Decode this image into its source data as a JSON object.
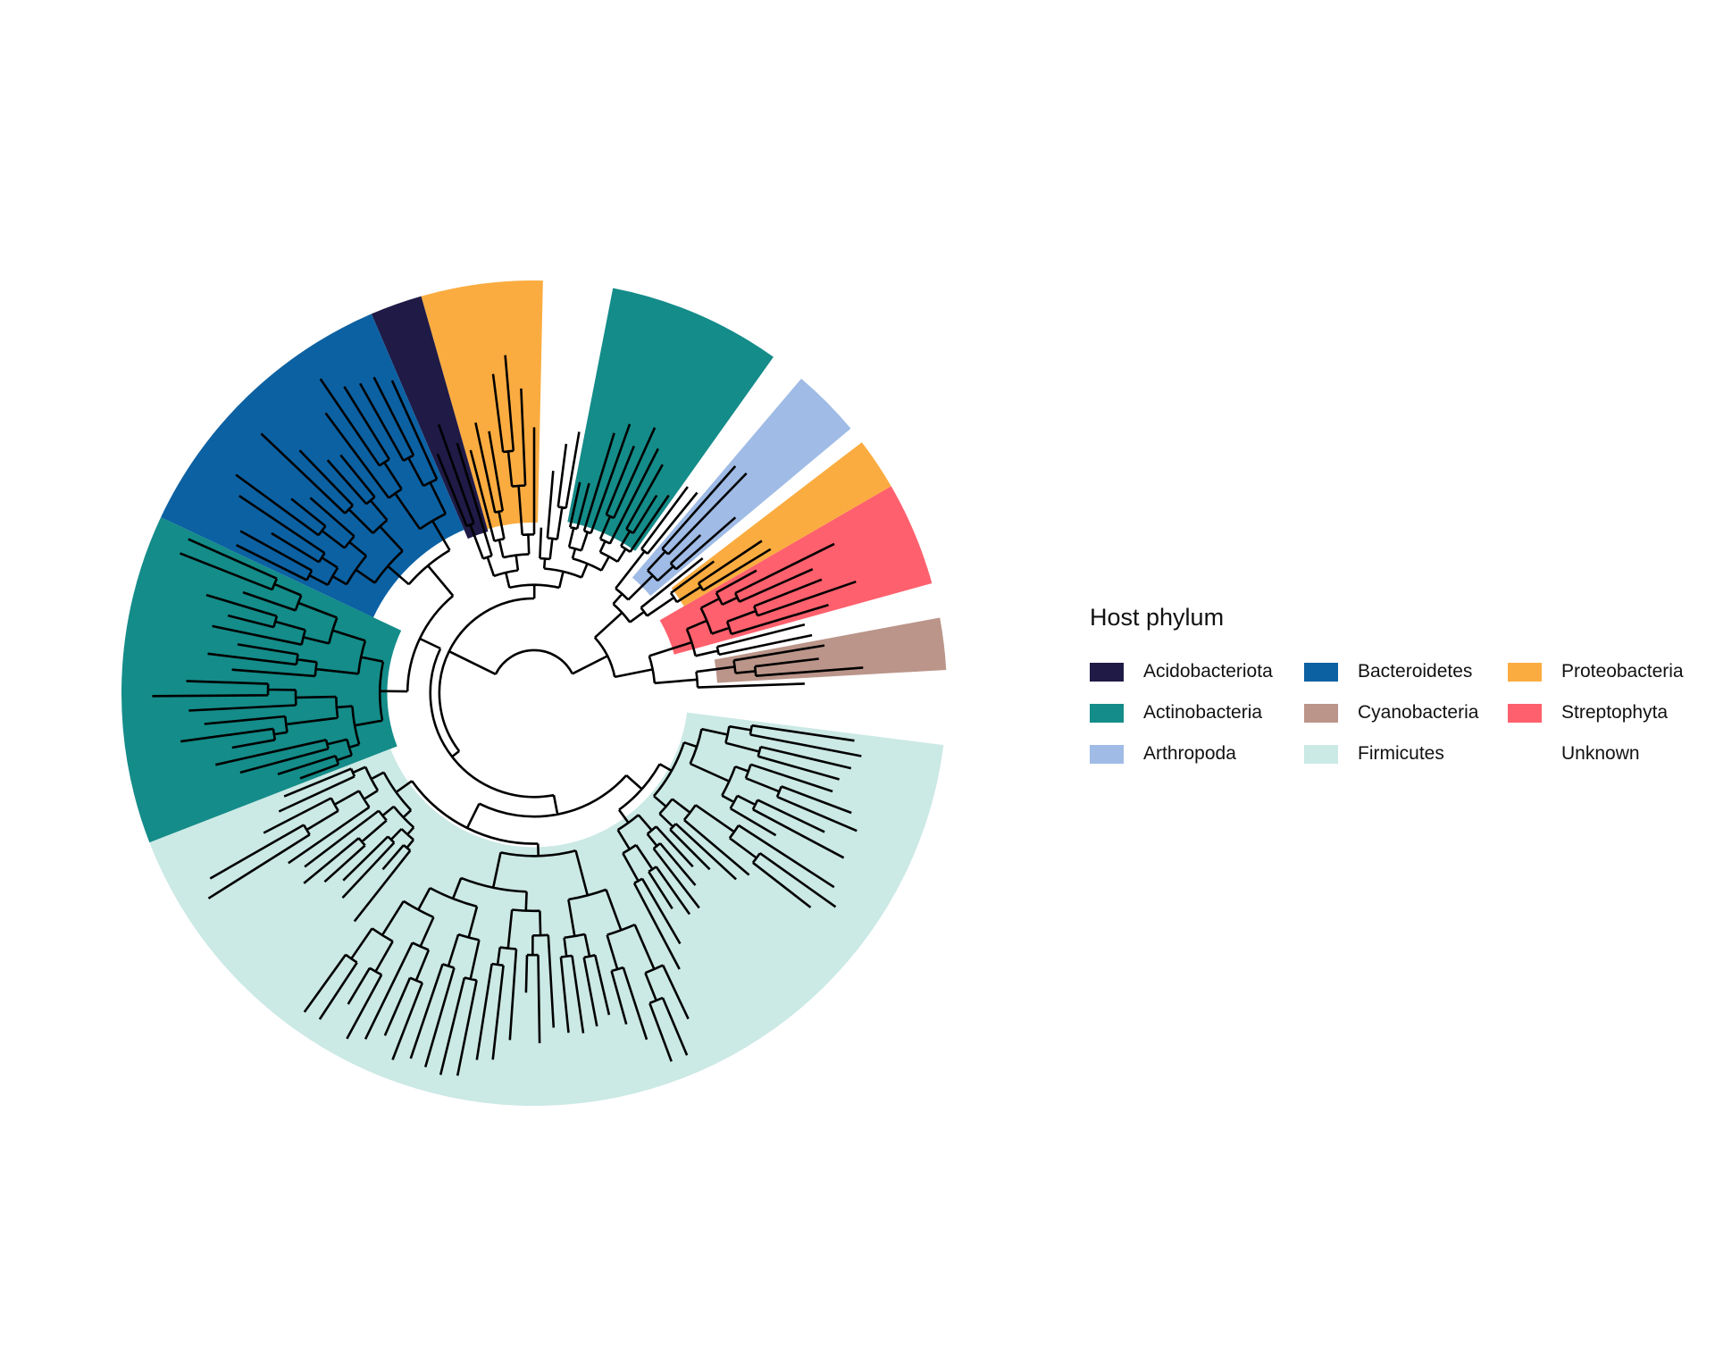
{
  "legend": {
    "title": "Host phylum",
    "items": [
      {
        "label": "Acidobacteriota",
        "color": "#1f1a46"
      },
      {
        "label": "Bacteroidetes",
        "color": "#0c61a2"
      },
      {
        "label": "Proteobacteria",
        "color": "#fbac40"
      },
      {
        "label": "Actinobacteria",
        "color": "#148c89"
      },
      {
        "label": "Cyanobacteria",
        "color": "#bb958a"
      },
      {
        "label": "Streptophyta",
        "color": "#fe606d"
      },
      {
        "label": "Arthropoda",
        "color": "#9fbbe6"
      },
      {
        "label": "Firmicutes",
        "color": "#cbe9e5"
      },
      {
        "label": "Unknown",
        "color": "#ffffff"
      }
    ]
  },
  "tree": {
    "layout": "circular",
    "clades": [
      {
        "phylum": "Unknown",
        "tips": 1
      },
      {
        "phylum": "Cyanobacteria",
        "tips": 3
      },
      {
        "phylum": "Unknown",
        "tips": 2
      },
      {
        "phylum": "Streptophyta",
        "tips": 6
      },
      {
        "phylum": "Proteobacteria",
        "tips": 3
      },
      {
        "phylum": "Unknown",
        "tips": 1
      },
      {
        "phylum": "Arthropoda",
        "tips": 4
      },
      {
        "phylum": "Unknown",
        "tips": 2
      },
      {
        "phylum": "Actinobacteria",
        "tips": 10
      },
      {
        "phylum": "Unknown",
        "tips": 4
      },
      {
        "phylum": "Proteobacteria",
        "tips": 7
      },
      {
        "phylum": "Acidobacteriota",
        "tips": 3
      },
      {
        "phylum": "Bacteroidetes",
        "tips": 17
      },
      {
        "phylum": "Actinobacteria",
        "tips": 19
      },
      {
        "phylum": "Firmicutes",
        "tips": 62
      }
    ]
  }
}
